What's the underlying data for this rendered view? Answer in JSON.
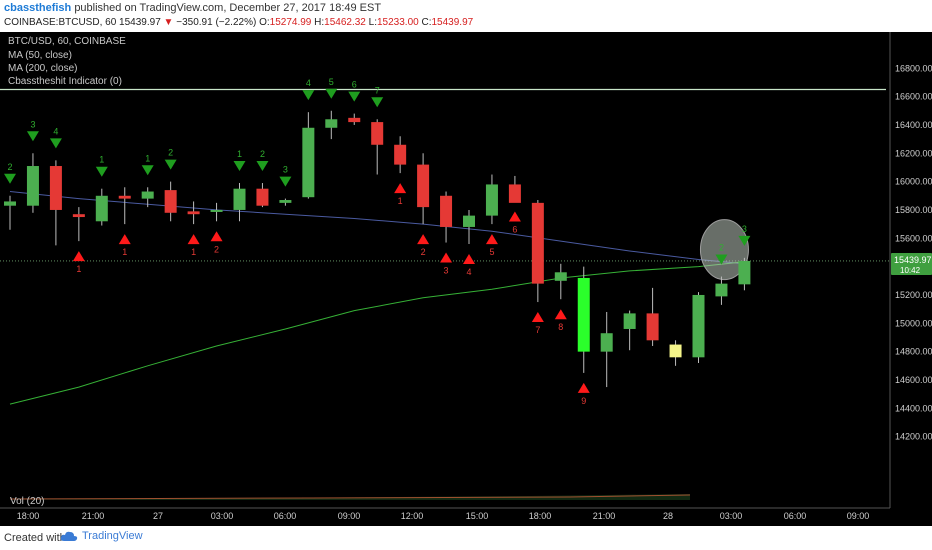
{
  "header": {
    "author": "cbassthefish",
    "published": "published on TradingView.com, December 27, 2017 18:49 EST",
    "symbol_line": "COINBASE:BTCUSD, 60",
    "last": "15439.97",
    "change": "−350.91 (−2.22%)",
    "o_label": "O:",
    "o": "15274.99",
    "h_label": "H:",
    "h": "15462.32",
    "l_label": "L:",
    "l": "15233.00",
    "c_label": "C:",
    "c": "15439.97"
  },
  "legend": {
    "title": "BTC/USD, 60, COINBASE",
    "ma50": "MA (50, close)",
    "ma200": "MA (200, close)",
    "indicator": "Cbasstheshit Indicator (0)",
    "volume": "Vol (20)"
  },
  "price_tag": {
    "price": "15439.97",
    "countdown": "10:42"
  },
  "footer": {
    "made_with": "Created with",
    "brand": "TradingView"
  },
  "colors": {
    "up": "#4caf50",
    "down": "#e53935",
    "bright_up": "#2bff2b",
    "doji": "#f5f58a",
    "ma50": "#36b136",
    "ma200": "#4a5aa0",
    "arrow_up": "#ff1a1a",
    "arrow_down": "#1f9e1f",
    "resistance": "#c8e6c9",
    "background": "#000000"
  },
  "chart_data": {
    "type": "candlestick",
    "title": "BTC/USD, 60, COINBASE",
    "x_ticks": [
      "18:00",
      "21:00",
      "27",
      "03:00",
      "06:00",
      "09:00",
      "12:00",
      "15:00",
      "18:00",
      "21:00",
      "28",
      "03:00",
      "06:00",
      "09:00"
    ],
    "y_ticks": [
      14200,
      14400,
      14600,
      14800,
      15000,
      15200,
      15400,
      15600,
      15800,
      16000,
      16200,
      16400,
      16600,
      16800
    ],
    "ylim": [
      14000,
      16950
    ],
    "grid": false,
    "resistance_level": 16650,
    "candles": [
      {
        "o": 15830,
        "h": 15900,
        "l": 15660,
        "c": 15860
      },
      {
        "o": 15830,
        "h": 16200,
        "l": 15780,
        "c": 16110
      },
      {
        "o": 16110,
        "h": 16150,
        "l": 15550,
        "c": 15800
      },
      {
        "o": 15770,
        "h": 15820,
        "l": 15580,
        "c": 15750
      },
      {
        "o": 15720,
        "h": 15950,
        "l": 15690,
        "c": 15900
      },
      {
        "o": 15900,
        "h": 15960,
        "l": 15700,
        "c": 15880
      },
      {
        "o": 15880,
        "h": 15960,
        "l": 15820,
        "c": 15930
      },
      {
        "o": 15940,
        "h": 16000,
        "l": 15720,
        "c": 15780
      },
      {
        "o": 15790,
        "h": 15860,
        "l": 15700,
        "c": 15770
      },
      {
        "o": 15790,
        "h": 15850,
        "l": 15720,
        "c": 15800
      },
      {
        "o": 15800,
        "h": 15990,
        "l": 15720,
        "c": 15950
      },
      {
        "o": 15950,
        "h": 15990,
        "l": 15820,
        "c": 15830
      },
      {
        "o": 15850,
        "h": 15880,
        "l": 15830,
        "c": 15870
      },
      {
        "o": 15890,
        "h": 16490,
        "l": 15880,
        "c": 16380
      },
      {
        "o": 16380,
        "h": 16500,
        "l": 16300,
        "c": 16440
      },
      {
        "o": 16450,
        "h": 16480,
        "l": 16400,
        "c": 16420
      },
      {
        "o": 16420,
        "h": 16440,
        "l": 16050,
        "c": 16260
      },
      {
        "o": 16260,
        "h": 16320,
        "l": 16060,
        "c": 16120
      },
      {
        "o": 16120,
        "h": 16200,
        "l": 15700,
        "c": 15820
      },
      {
        "o": 15900,
        "h": 15930,
        "l": 15570,
        "c": 15680
      },
      {
        "o": 15680,
        "h": 15800,
        "l": 15560,
        "c": 15760
      },
      {
        "o": 15760,
        "h": 16050,
        "l": 15700,
        "c": 15980
      },
      {
        "o": 15980,
        "h": 16040,
        "l": 15860,
        "c": 15850
      },
      {
        "o": 15850,
        "h": 15870,
        "l": 15150,
        "c": 15280
      },
      {
        "o": 15300,
        "h": 15420,
        "l": 15170,
        "c": 15360
      },
      {
        "o": 15320,
        "h": 15400,
        "l": 14650,
        "c": 14800
      },
      {
        "o": 14800,
        "h": 15080,
        "l": 14550,
        "c": 14930
      },
      {
        "o": 14960,
        "h": 15090,
        "l": 14810,
        "c": 15070
      },
      {
        "o": 15070,
        "h": 15250,
        "l": 14840,
        "c": 14880
      },
      {
        "o": 14760,
        "h": 14880,
        "l": 14700,
        "c": 14850
      },
      {
        "o": 14760,
        "h": 15220,
        "l": 14720,
        "c": 15200
      },
      {
        "o": 15190,
        "h": 15330,
        "l": 15130,
        "c": 15280
      },
      {
        "o": 15275,
        "h": 15462,
        "l": 15233,
        "c": 15440
      }
    ],
    "ma50": [
      {
        "i": 0,
        "v": 14430
      },
      {
        "i": 3,
        "v": 14550
      },
      {
        "i": 6,
        "v": 14700
      },
      {
        "i": 9,
        "v": 14840
      },
      {
        "i": 12,
        "v": 14960
      },
      {
        "i": 15,
        "v": 15090
      },
      {
        "i": 18,
        "v": 15180
      },
      {
        "i": 21,
        "v": 15240
      },
      {
        "i": 24,
        "v": 15320
      },
      {
        "i": 27,
        "v": 15370
      },
      {
        "i": 30,
        "v": 15400
      },
      {
        "i": 32,
        "v": 15435
      }
    ],
    "ma200": [
      {
        "i": 0,
        "v": 15930
      },
      {
        "i": 3,
        "v": 15880
      },
      {
        "i": 6,
        "v": 15840
      },
      {
        "i": 9,
        "v": 15800
      },
      {
        "i": 12,
        "v": 15770
      },
      {
        "i": 15,
        "v": 15740
      },
      {
        "i": 18,
        "v": 15700
      },
      {
        "i": 21,
        "v": 15650
      },
      {
        "i": 24,
        "v": 15580
      },
      {
        "i": 27,
        "v": 15510
      },
      {
        "i": 30,
        "v": 15450
      },
      {
        "i": 32,
        "v": 15420
      }
    ],
    "signals": [
      {
        "i": 0,
        "dir": "down",
        "label": "2"
      },
      {
        "i": 1,
        "dir": "down",
        "label": "3"
      },
      {
        "i": 2,
        "dir": "down",
        "label": "4"
      },
      {
        "i": 3,
        "dir": "up",
        "label": "1"
      },
      {
        "i": 4,
        "dir": "down",
        "label": "1"
      },
      {
        "i": 5,
        "dir": "up",
        "label": "1"
      },
      {
        "i": 6,
        "dir": "down",
        "label": "1"
      },
      {
        "i": 7,
        "dir": "down",
        "label": "2"
      },
      {
        "i": 8,
        "dir": "up",
        "label": "1"
      },
      {
        "i": 9,
        "dir": "up",
        "label": "2"
      },
      {
        "i": 10,
        "dir": "down",
        "label": "1"
      },
      {
        "i": 11,
        "dir": "down",
        "label": "2"
      },
      {
        "i": 12,
        "dir": "down",
        "label": "3"
      },
      {
        "i": 13,
        "dir": "down",
        "label": "4"
      },
      {
        "i": 14,
        "dir": "down",
        "label": "5"
      },
      {
        "i": 15,
        "dir": "down",
        "label": "6"
      },
      {
        "i": 16,
        "dir": "down",
        "label": "7"
      },
      {
        "i": 17,
        "dir": "up",
        "label": "1"
      },
      {
        "i": 18,
        "dir": "up",
        "label": "2"
      },
      {
        "i": 19,
        "dir": "up",
        "label": "3"
      },
      {
        "i": 20,
        "dir": "up",
        "label": "4"
      },
      {
        "i": 21,
        "dir": "up",
        "label": "5"
      },
      {
        "i": 22,
        "dir": "up",
        "label": "6"
      },
      {
        "i": 23,
        "dir": "up",
        "label": "7"
      },
      {
        "i": 24,
        "dir": "up",
        "label": "8"
      },
      {
        "i": 25,
        "dir": "up",
        "label": "9"
      },
      {
        "i": 31,
        "dir": "down",
        "label": "2"
      },
      {
        "i": 32,
        "dir": "down",
        "label": "3"
      }
    ]
  }
}
